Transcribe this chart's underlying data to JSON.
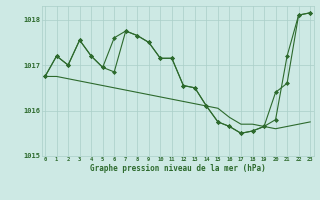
{
  "title": "Graphe pression niveau de la mer (hPa)",
  "hours": [
    0,
    1,
    2,
    3,
    4,
    5,
    6,
    7,
    8,
    9,
    10,
    11,
    12,
    13,
    14,
    15,
    16,
    17,
    18,
    19,
    20,
    21,
    22,
    23
  ],
  "series1": [
    1016.75,
    1017.2,
    1017.0,
    1017.55,
    1017.2,
    1016.95,
    1016.85,
    1017.75,
    1017.65,
    1017.5,
    1017.15,
    1017.15,
    1016.55,
    1016.5,
    1016.1,
    1015.75,
    1015.65,
    1015.5,
    1015.55,
    1015.65,
    1015.8,
    1017.2,
    1018.1,
    1018.15
  ],
  "series2": [
    1016.75,
    1017.2,
    1017.0,
    1017.55,
    1017.2,
    1016.95,
    1017.6,
    1017.75,
    1017.65,
    1017.5,
    1017.15,
    1017.15,
    1016.55,
    1016.5,
    1016.1,
    1015.75,
    1015.65,
    1015.5,
    1015.55,
    1015.65,
    1016.4,
    1016.6,
    1018.1,
    1018.15
  ],
  "series3": [
    1016.75,
    1016.75,
    1016.7,
    1016.65,
    1016.6,
    1016.55,
    1016.5,
    1016.45,
    1016.4,
    1016.35,
    1016.3,
    1016.25,
    1016.2,
    1016.15,
    1016.1,
    1016.05,
    1015.85,
    1015.7,
    1015.7,
    1015.65,
    1015.6,
    1015.65,
    1015.7,
    1015.75
  ],
  "ylim": [
    1015.0,
    1018.3
  ],
  "yticks": [
    1015,
    1016,
    1017,
    1018
  ],
  "line_color": "#2d6a2d",
  "bg_color": "#cde9e4",
  "grid_color": "#aacfc8",
  "label_color": "#2d6a2d",
  "title_color": "#2d6a2d",
  "markersize": 2.0,
  "linewidth": 0.8
}
